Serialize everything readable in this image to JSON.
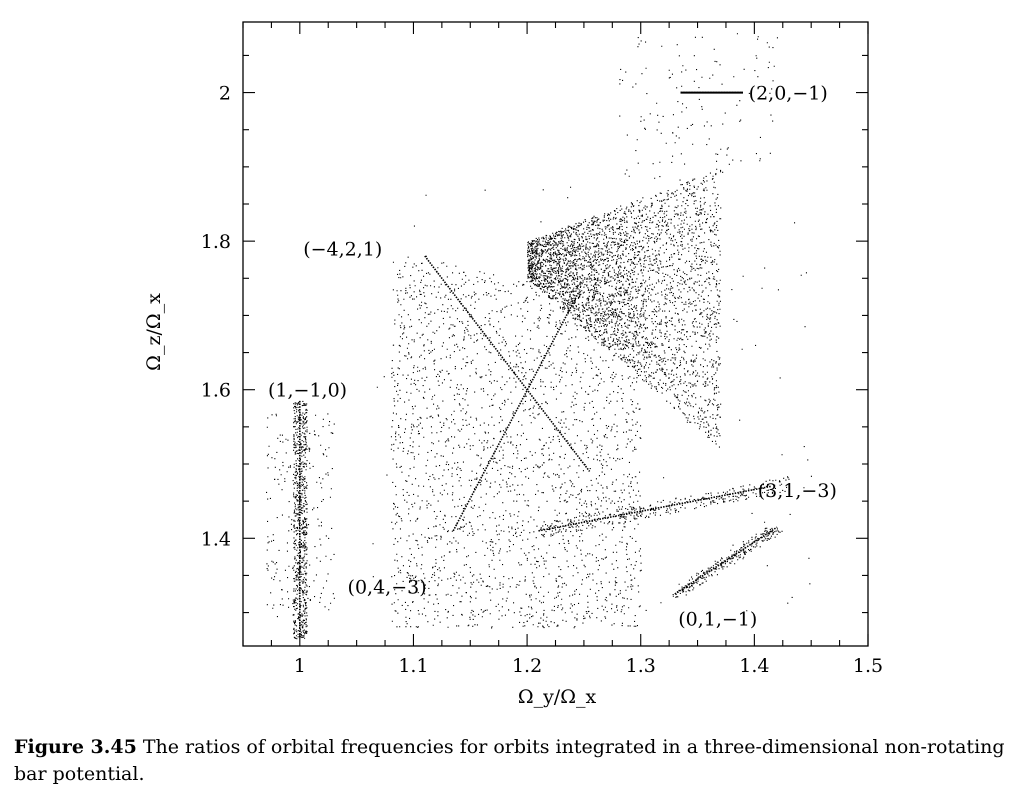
{
  "chart_data": {
    "type": "scatter",
    "xlabel": "Ω_y/Ω_x",
    "ylabel": "Ω_z/Ω_x",
    "xlim": [
      0.95,
      1.5
    ],
    "ylim": [
      1.255,
      2.095
    ],
    "x_ticks": {
      "major": [
        1,
        1.1,
        1.2,
        1.3,
        1.4,
        1.5
      ],
      "labels": [
        "1",
        "1.1",
        "1.2",
        "1.3",
        "1.4",
        "1.5"
      ]
    },
    "y_ticks": {
      "major": [
        1.4,
        1.6,
        1.8,
        2.0
      ],
      "labels": [
        "1.4",
        "1.6",
        "1.8",
        "2"
      ]
    },
    "grid": false,
    "legend": false,
    "marker": "dot",
    "color": "#000000",
    "annotations": [
      {
        "text": "(2,0,−1)",
        "x": 1.395,
        "y": 2.0
      },
      {
        "text": "(−4,2,1)",
        "x": 1.003,
        "y": 1.79
      },
      {
        "text": "(1,−1,0)",
        "x": 0.972,
        "y": 1.6
      },
      {
        "text": "(3,1,−3)",
        "x": 1.403,
        "y": 1.465
      },
      {
        "text": "(0,4,−3)",
        "x": 1.042,
        "y": 1.335
      },
      {
        "text": "(0,1,−1)",
        "x": 1.333,
        "y": 1.292
      }
    ],
    "resonance_lines": [
      {
        "name": "(2,0,−1)",
        "from": [
          1.335,
          2.0
        ],
        "to": [
          1.39,
          2.0
        ]
      },
      {
        "name": "(−4,2,1)",
        "from": [
          1.11,
          1.78
        ],
        "to": [
          1.255,
          1.49
        ]
      },
      {
        "name": "(1,−1,0)",
        "from": [
          1.0,
          1.585
        ],
        "to": [
          1.0,
          1.265
        ]
      },
      {
        "name": "(0,4,−3)",
        "from": [
          1.135,
          1.41
        ],
        "to": [
          1.245,
          1.73
        ]
      },
      {
        "name": "(3,1,−3)",
        "from": [
          1.21,
          1.41
        ],
        "to": [
          1.415,
          1.47
        ]
      },
      {
        "name": "(0,1,−1)",
        "from": [
          1.33,
          1.325
        ],
        "to": [
          1.42,
          1.415
        ]
      }
    ]
  },
  "caption": {
    "label": "Figure 3.45",
    "text": " The ratios of orbital frequencies for orbits integrated in a three-dimensional non-rotating bar potential."
  }
}
